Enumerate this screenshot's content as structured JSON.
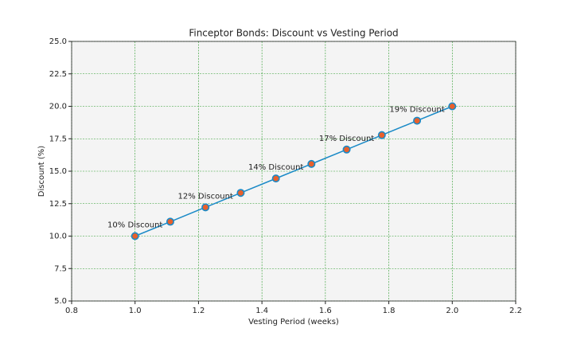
{
  "chart_data": {
    "type": "line",
    "title": "Finceptor Bonds: Discount vs Vesting Period",
    "xlabel": "Vesting Period (weeks)",
    "ylabel": "Discount (%)",
    "x": [
      1.0,
      1.111,
      1.222,
      1.333,
      1.444,
      1.556,
      1.667,
      1.778,
      1.889,
      2.0
    ],
    "series": [
      {
        "name": "Discount",
        "color": "#1a8ac7",
        "marker_color": "#e8602c",
        "values": [
          10.0,
          11.11,
          12.22,
          13.33,
          14.44,
          15.56,
          16.67,
          17.78,
          18.89,
          20.0
        ]
      }
    ],
    "annotations": [
      {
        "text": "10% Discount",
        "x": 1.0,
        "y": 10.0
      },
      {
        "text": "12% Discount",
        "x": 1.222,
        "y": 12.22
      },
      {
        "text": "14% Discount",
        "x": 1.444,
        "y": 14.44
      },
      {
        "text": "17% Discount",
        "x": 1.667,
        "y": 16.67
      },
      {
        "text": "19% Discount",
        "x": 1.889,
        "y": 18.89
      }
    ],
    "xlim": [
      0.8,
      2.2
    ],
    "xticks": [
      0.8,
      {
        "value": 1.0,
        "label": "1.0"
      },
      1.2,
      1.4,
      1.6,
      1.8,
      {
        "value": 2.0,
        "label": "2.0"
      },
      2.2
    ],
    "ylim": [
      5.0,
      25.0
    ],
    "yticks": [
      {
        "value": 5.0,
        "label": "5.0"
      },
      7.5,
      {
        "value": 10.0,
        "label": "10.0"
      },
      12.5,
      {
        "value": 15.0,
        "label": "15.0"
      },
      17.5,
      {
        "value": 20.0,
        "label": "20.0"
      },
      22.5,
      {
        "value": 25.0,
        "label": "25.0"
      }
    ],
    "grid": true,
    "grid_color": "#2a9a2a"
  }
}
